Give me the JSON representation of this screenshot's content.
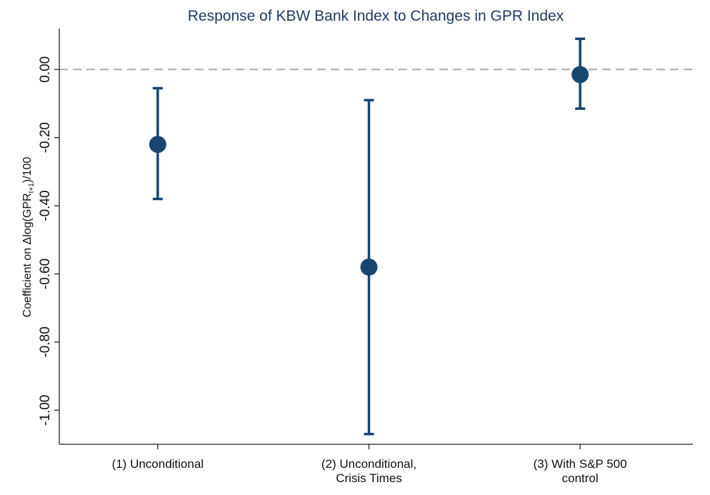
{
  "chart_data": {
    "type": "scatter",
    "title": "Response of KBW Bank Index to Changes in GPR Index",
    "ylabel": {
      "prefix": "Coefficient on Δlog(GPR",
      "subscript": "t+1",
      "suffix": ")/100"
    },
    "xlabel": "",
    "categories": [
      [
        "(1) Unconditional"
      ],
      [
        "(2) Unconditional,",
        "Crisis Times"
      ],
      [
        "(3) With S&P 500",
        "control"
      ]
    ],
    "series": [
      {
        "estimates": [
          -0.22,
          -0.58,
          -0.015
        ],
        "ci_lower": [
          -0.38,
          -1.07,
          -0.115
        ],
        "ci_upper": [
          -0.055,
          -0.09,
          0.09
        ]
      }
    ],
    "reference_line": {
      "y": 0,
      "style": "dashed"
    },
    "ylim": [
      -1.1,
      0.12
    ],
    "yticks": [
      0,
      -0.2,
      -0.4,
      -0.6,
      -0.8,
      -1.0
    ],
    "ytick_labels": [
      "0.00",
      "-0.20",
      "-0.40",
      "-0.60",
      "-0.80",
      "-1.00"
    ],
    "grid": false,
    "colors": {
      "marker": "#1a4570",
      "reference": "#aaaaaa",
      "title": "#1f3a5f",
      "axis": "#222222"
    }
  }
}
